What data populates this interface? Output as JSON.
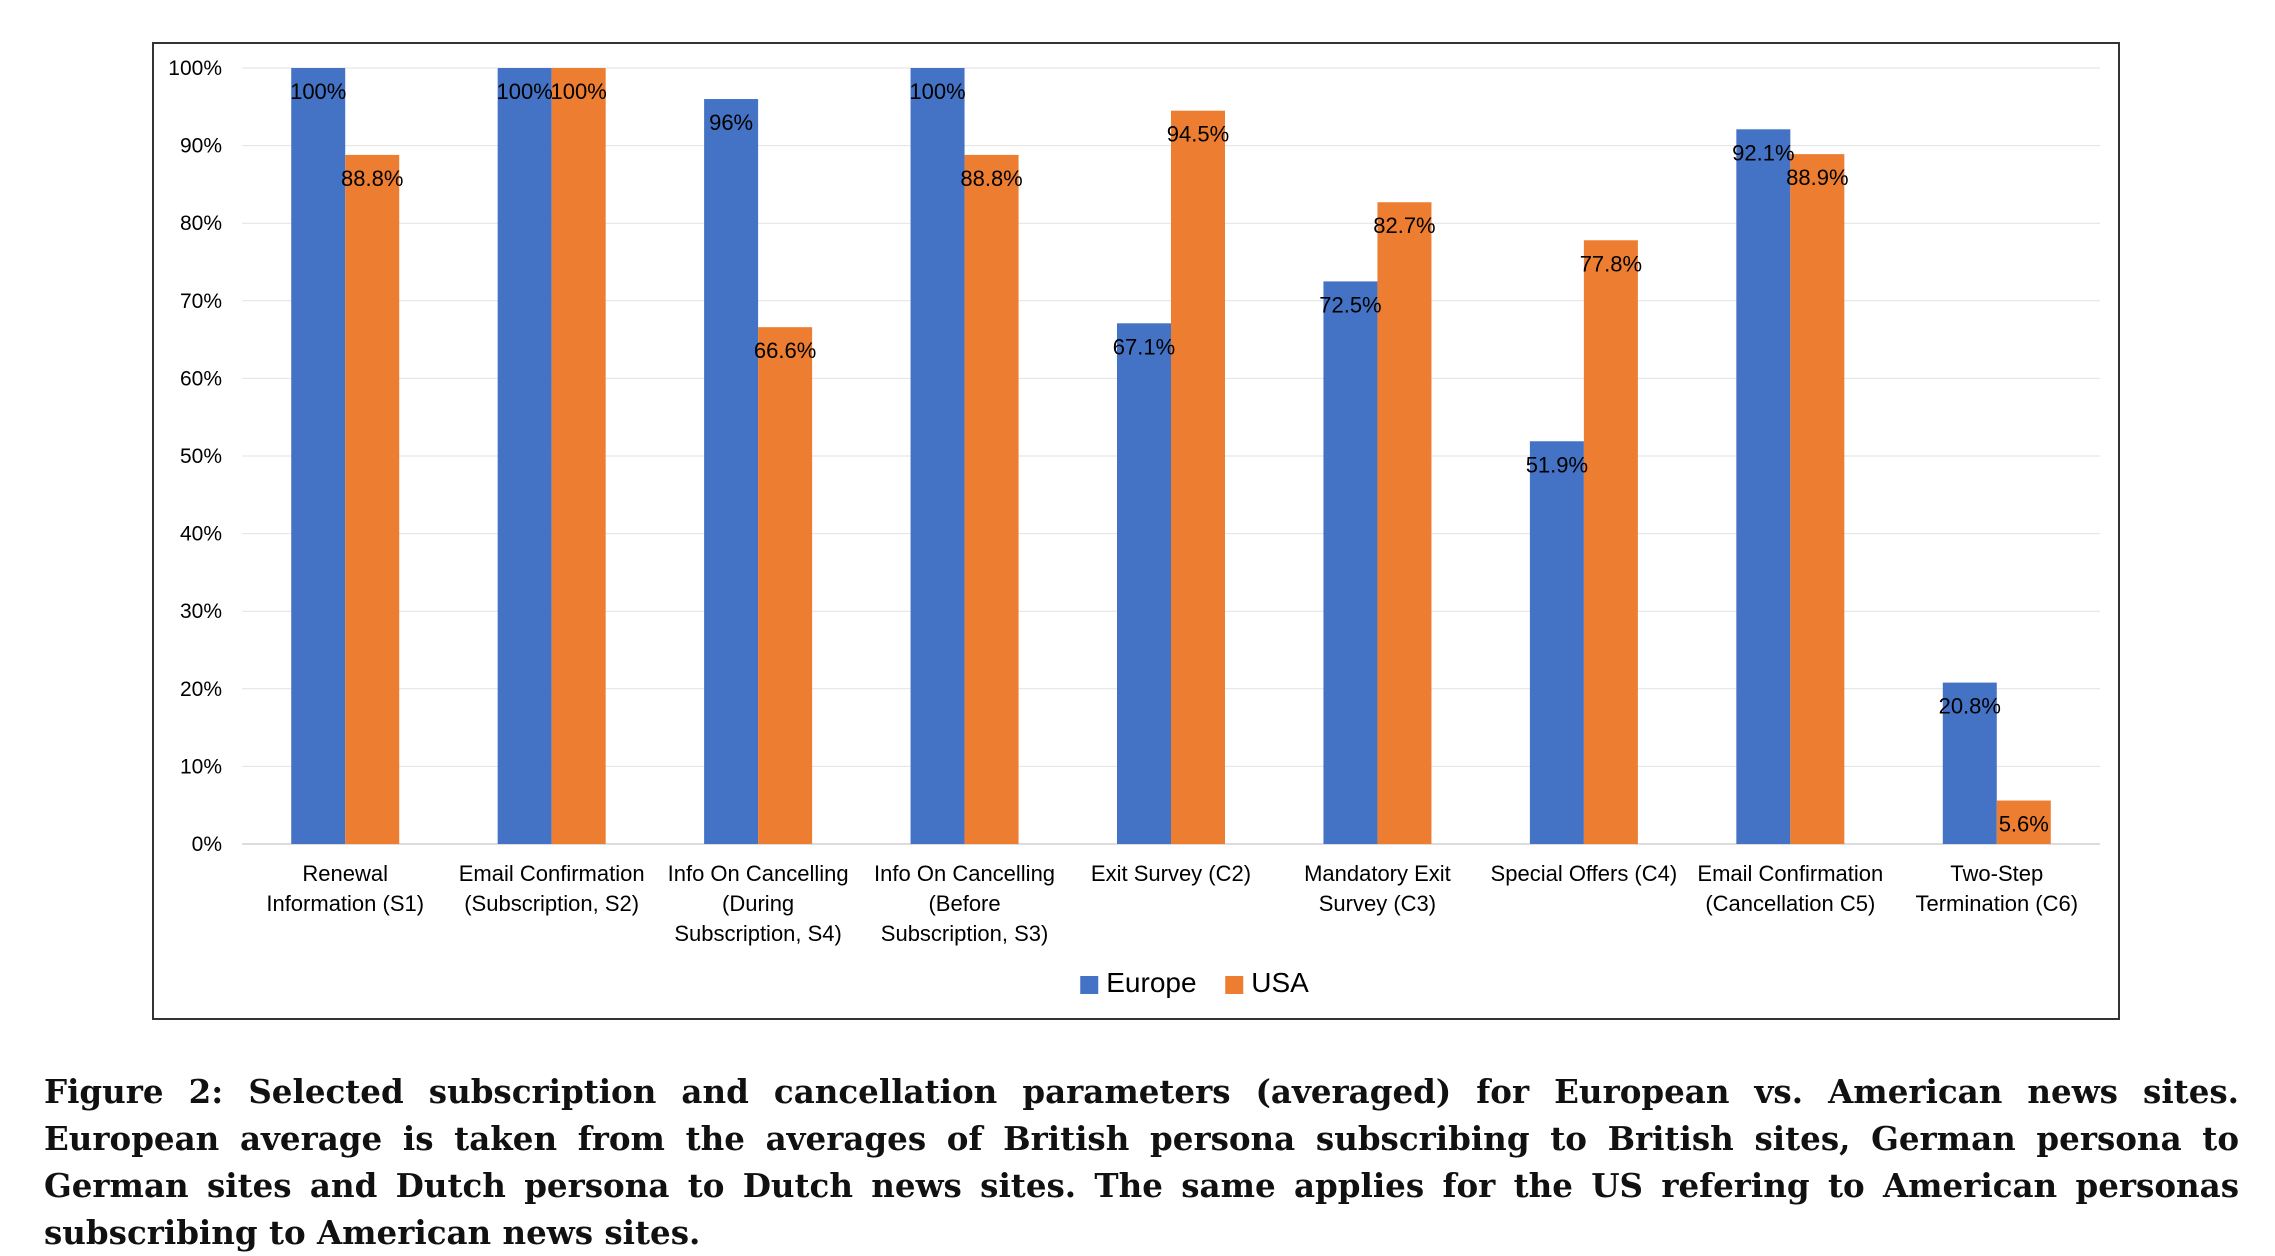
{
  "chart_data": {
    "type": "bar",
    "categories": [
      [
        "Renewal",
        "Information (S1)"
      ],
      [
        "Email Confirmation",
        "(Subscription, S2)"
      ],
      [
        "Info On Cancelling",
        "(During",
        "Subscription, S4)"
      ],
      [
        "Info On Cancelling",
        "(Before",
        "Subscription, S3)"
      ],
      [
        "Exit Survey (C2)"
      ],
      [
        "Mandatory Exit",
        "Survey (C3)"
      ],
      [
        "Special Offers (C4)"
      ],
      [
        "Email Confirmation",
        "(Cancellation C5)"
      ],
      [
        "Two-Step",
        "Termination (C6)"
      ]
    ],
    "series": [
      {
        "name": "Europe",
        "color": "#4472C4",
        "values": [
          100,
          100,
          96,
          100,
          67.1,
          72.5,
          51.9,
          92.1,
          20.8
        ],
        "labels": [
          "100%",
          "100%",
          "96%",
          "100%",
          "67.1%",
          "72.5%",
          "51.9%",
          "92.1%",
          "20.8%"
        ]
      },
      {
        "name": "USA",
        "color": "#ED7D31",
        "values": [
          88.8,
          100,
          66.6,
          88.8,
          94.5,
          82.7,
          77.8,
          88.9,
          5.6
        ],
        "labels": [
          "88.8%",
          "100%",
          "66.6%",
          "88.8%",
          "94.5%",
          "82.7%",
          "77.8%",
          "88.9%",
          "5.6%"
        ]
      }
    ],
    "yticks": [
      "0%",
      "10%",
      "20%",
      "30%",
      "40%",
      "50%",
      "60%",
      "70%",
      "80%",
      "90%",
      "100%"
    ],
    "ylim": [
      0,
      100
    ],
    "grid": true,
    "legend": "bottom-center"
  },
  "caption": "Figure 2: Selected subscription and cancellation parameters (averaged) for European vs. American news sites. European average is taken from the averages of British persona subscribing to British sites, German persona to German sites and Dutch persona to Dutch news sites. The same applies for the US refering to American personas subscribing to American news sites."
}
